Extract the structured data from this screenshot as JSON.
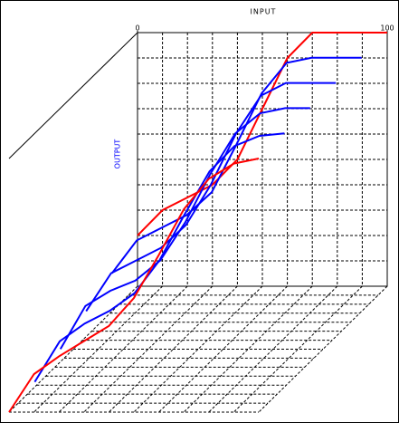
{
  "chart_data": {
    "type": "surface",
    "x_label": "INPUT",
    "y_label": "OUTPUT",
    "xlim": [
      0,
      100
    ],
    "xticks": [
      0,
      100
    ],
    "ylim": [
      0,
      100
    ],
    "x": [
      0,
      10,
      20,
      30,
      40,
      50,
      60,
      70,
      80,
      90,
      100
    ],
    "depths": [
      0,
      0.2,
      0.4,
      0.6,
      0.8,
      1
    ],
    "series": [
      {
        "color": "#ff0000",
        "values": [
          20,
          30,
          35,
          40,
          50,
          70,
          90,
          100,
          100,
          100,
          100
        ]
      },
      {
        "color": "#0000ff",
        "values": [
          15,
          28,
          33,
          38,
          47,
          66,
          86,
          98,
          100,
          100,
          100
        ]
      },
      {
        "color": "#0000ff",
        "values": [
          10,
          25,
          30,
          35,
          44,
          60,
          80,
          95,
          100,
          100,
          100
        ]
      },
      {
        "color": "#0000ff",
        "values": [
          5,
          22,
          28,
          32,
          40,
          55,
          74,
          90,
          98,
          100,
          100
        ]
      },
      {
        "color": "#0000ff",
        "values": [
          2,
          18,
          25,
          30,
          37,
          50,
          68,
          85,
          95,
          99,
          100
        ]
      },
      {
        "color": "#ff0000",
        "values": [
          0,
          15,
          22,
          28,
          34,
          45,
          62,
          80,
          92,
          98,
          100
        ]
      }
    ]
  }
}
